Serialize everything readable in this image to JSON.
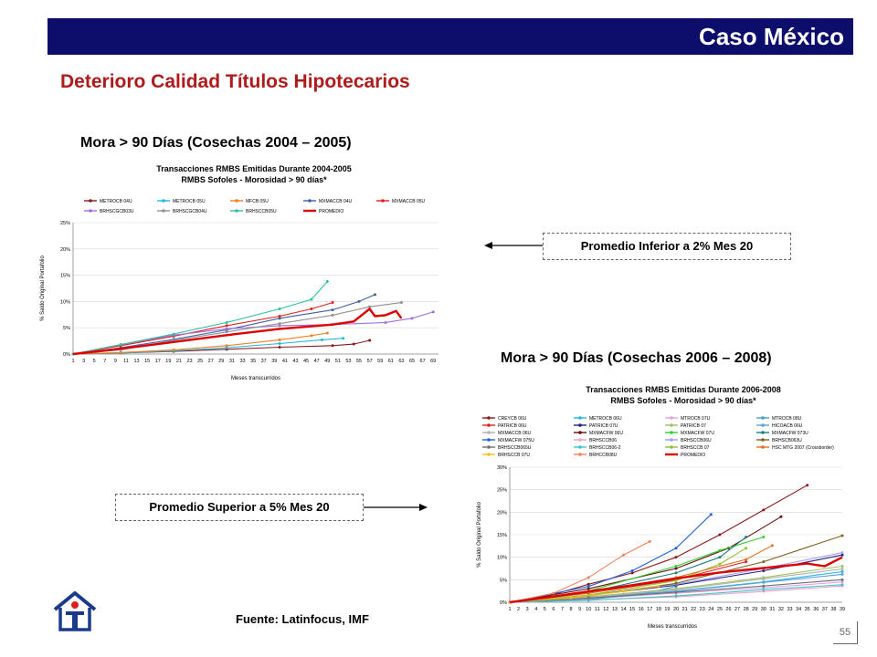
{
  "header": {
    "title": "Caso México"
  },
  "slide_title": "Deterioro Calidad Títulos Hipotecarios",
  "section1_heading": "Mora > 90 Días (Cosechas 2004 – 2005)",
  "section2_heading": "Mora > 90 Días (Cosechas 2006 – 2008)",
  "callout_inferior": "Promedio Inferior a 2% Mes 20",
  "callout_superior": "Promedio Superior a 5% Mes 20",
  "source": "Fuente: Latinfocus, IMF",
  "page_number": "55",
  "colors": {
    "header_bar": "#0d0d6b",
    "title_red": "#b01a1a",
    "promedio": "#dd0000"
  },
  "chart_data": [
    {
      "type": "line",
      "title": "Transacciones RMBS Emitidas Durante 2004-2005",
      "subtitle": "RMBS Sofoles - Morosidad > 90 días*",
      "xlabel": "Meses transcurridos",
      "ylabel": "% Saldo Original Portafolio",
      "x_ticks": [
        1,
        3,
        5,
        7,
        9,
        11,
        13,
        15,
        17,
        19,
        21,
        23,
        25,
        27,
        29,
        31,
        33,
        35,
        37,
        39,
        41,
        43,
        45,
        47,
        49,
        51,
        53,
        55,
        57,
        59,
        61,
        63,
        65,
        67,
        69
      ],
      "xlim": [
        1,
        70
      ],
      "ylim": [
        0,
        25
      ],
      "y_ticks": [
        "0%",
        "5%",
        "10%",
        "15%",
        "20%",
        "25%"
      ],
      "grid": true,
      "legend_position": "top",
      "series": [
        {
          "name": "METROCB 04U",
          "color": "#8b1a1a",
          "values": [
            [
              1,
              0
            ],
            [
              10,
              0.2
            ],
            [
              20,
              0.5
            ],
            [
              30,
              0.9
            ],
            [
              40,
              1.3
            ],
            [
              50,
              1.6
            ],
            [
              54,
              1.9
            ],
            [
              57,
              2.6
            ]
          ]
        },
        {
          "name": "METROCB 05U",
          "color": "#20b8e0",
          "values": [
            [
              1,
              0
            ],
            [
              10,
              0.2
            ],
            [
              20,
              0.6
            ],
            [
              30,
              1.2
            ],
            [
              40,
              2.0
            ],
            [
              48,
              2.7
            ],
            [
              52,
              3.0
            ]
          ]
        },
        {
          "name": "MFCB 05U",
          "color": "#f08020",
          "values": [
            [
              1,
              0
            ],
            [
              10,
              0.3
            ],
            [
              20,
              0.8
            ],
            [
              30,
              1.6
            ],
            [
              40,
              2.7
            ],
            [
              46,
              3.5
            ],
            [
              49,
              4.0
            ]
          ]
        },
        {
          "name": "MXMACCB 04U",
          "color": "#4060a0",
          "values": [
            [
              1,
              0
            ],
            [
              10,
              1.2
            ],
            [
              20,
              2.8
            ],
            [
              30,
              4.6
            ],
            [
              40,
              6.8
            ],
            [
              50,
              8.4
            ],
            [
              55,
              10.0
            ],
            [
              58,
              11.3
            ]
          ]
        },
        {
          "name": "MXMACCB 05U",
          "color": "#e02020",
          "values": [
            [
              1,
              0
            ],
            [
              10,
              1.6
            ],
            [
              20,
              3.4
            ],
            [
              30,
              5.4
            ],
            [
              40,
              7.2
            ],
            [
              46,
              8.6
            ],
            [
              50,
              9.8
            ]
          ]
        },
        {
          "name": "BRHSCGCB03U",
          "color": "#a070e0",
          "values": [
            [
              1,
              0
            ],
            [
              10,
              1.8
            ],
            [
              20,
              3.6
            ],
            [
              30,
              4.8
            ],
            [
              40,
              5.4
            ],
            [
              50,
              5.6
            ],
            [
              60,
              6.0
            ],
            [
              65,
              6.8
            ],
            [
              69,
              8.0
            ]
          ]
        },
        {
          "name": "BRHSCGCB04U",
          "color": "#909090",
          "values": [
            [
              1,
              0
            ],
            [
              10,
              0.8
            ],
            [
              20,
              2.6
            ],
            [
              30,
              4.2
            ],
            [
              40,
              5.8
            ],
            [
              50,
              7.4
            ],
            [
              57,
              9.0
            ],
            [
              63,
              9.8
            ]
          ]
        },
        {
          "name": "BRHSCCB05U",
          "color": "#30c0a0",
          "values": [
            [
              1,
              0
            ],
            [
              10,
              1.8
            ],
            [
              20,
              3.8
            ],
            [
              30,
              6.0
            ],
            [
              40,
              8.6
            ],
            [
              46,
              10.4
            ],
            [
              49,
              13.8
            ]
          ]
        },
        {
          "name": "PROMEDIO",
          "color": "#dd0000",
          "width": 2.4,
          "values": [
            [
              1,
              0
            ],
            [
              10,
              1.0
            ],
            [
              20,
              2.3
            ],
            [
              30,
              3.6
            ],
            [
              40,
              4.8
            ],
            [
              50,
              5.6
            ],
            [
              54,
              6.2
            ],
            [
              57,
              8.6
            ],
            [
              58,
              7.2
            ],
            [
              60,
              7.4
            ],
            [
              62,
              8.2
            ],
            [
              63,
              6.8
            ]
          ]
        }
      ]
    },
    {
      "type": "line",
      "title": "Transacciones RMBS Emitidas Durante 2006-2008",
      "subtitle": "RMBS Sofoles - Morosidad > 90 días*",
      "xlabel": "Meses transcurridos",
      "ylabel": "% Saldo Original Portafolio",
      "x_ticks": [
        1,
        2,
        3,
        4,
        5,
        6,
        7,
        8,
        9,
        10,
        11,
        12,
        13,
        14,
        15,
        16,
        17,
        18,
        19,
        20,
        21,
        22,
        23,
        24,
        25,
        26,
        27,
        28,
        29,
        30,
        31,
        32,
        33,
        34,
        35,
        36,
        37,
        38,
        39
      ],
      "xlim": [
        1,
        39
      ],
      "ylim": [
        0,
        30
      ],
      "y_ticks": [
        "0%",
        "5%",
        "10%",
        "15%",
        "20%",
        "25%",
        "30%"
      ],
      "grid": true,
      "legend_position": "top",
      "series": [
        {
          "name": "CREYCB 06U",
          "color": "#8b1a1a",
          "values": [
            [
              1,
              0
            ],
            [
              5,
              1.2
            ],
            [
              10,
              4.0
            ],
            [
              15,
              6.5
            ],
            [
              20,
              10.0
            ],
            [
              25,
              15.0
            ],
            [
              30,
              20.5
            ],
            [
              35,
              26.0
            ]
          ]
        },
        {
          "name": "METROCB 06U",
          "color": "#20b8e0",
          "values": [
            [
              1,
              0
            ],
            [
              10,
              1.0
            ],
            [
              20,
              2.5
            ],
            [
              30,
              4.5
            ],
            [
              39,
              6.8
            ]
          ]
        },
        {
          "name": "MTROCB 07U",
          "color": "#e0a0e0",
          "values": [
            [
              1,
              0
            ],
            [
              10,
              0.8
            ],
            [
              20,
              2.0
            ],
            [
              30,
              3.2
            ],
            [
              39,
              4.5
            ]
          ]
        },
        {
          "name": "MTROCB 08U",
          "color": "#40a0c0",
          "values": [
            [
              1,
              0
            ],
            [
              10,
              0.6
            ],
            [
              16,
              1.8
            ],
            [
              20,
              3.5
            ]
          ]
        },
        {
          "name": "PATRICB 06U",
          "color": "#e02020",
          "values": [
            [
              1,
              0
            ],
            [
              10,
              2.0
            ],
            [
              20,
              5.0
            ],
            [
              28,
              9.0
            ]
          ]
        },
        {
          "name": "PATRICB 07U",
          "color": "#202080",
          "values": [
            [
              1,
              0
            ],
            [
              10,
              1.5
            ],
            [
              20,
              3.8
            ],
            [
              30,
              7.0
            ],
            [
              39,
              10.5
            ]
          ]
        },
        {
          "name": "PATRICB 07",
          "color": "#a0c060",
          "values": [
            [
              1,
              0
            ],
            [
              10,
              1.2
            ],
            [
              20,
              3.0
            ],
            [
              30,
              5.5
            ],
            [
              39,
              8.0
            ]
          ]
        },
        {
          "name": "HICOACB 06U",
          "color": "#60a0e0",
          "values": [
            [
              1,
              0
            ],
            [
              10,
              0.9
            ],
            [
              20,
              2.4
            ],
            [
              30,
              4.4
            ],
            [
              39,
              6.2
            ]
          ]
        },
        {
          "name": "MXMACCB 06U",
          "color": "#b0b0b0",
          "values": [
            [
              1,
              0
            ],
            [
              10,
              1.1
            ],
            [
              20,
              2.8
            ],
            [
              30,
              5.2
            ],
            [
              39,
              7.4
            ]
          ]
        },
        {
          "name": "MXMACFW 06U",
          "color": "#6a0d0d",
          "values": [
            [
              1,
              0
            ],
            [
              10,
              3.0
            ],
            [
              20,
              7.5
            ],
            [
              26,
              12.0
            ],
            [
              32,
              19.0
            ]
          ]
        },
        {
          "name": "MXMACFW 07U",
          "color": "#30d030",
          "values": [
            [
              1,
              0
            ],
            [
              10,
              2.5
            ],
            [
              20,
              8.0
            ],
            [
              25,
              11.5
            ],
            [
              30,
              14.5
            ]
          ]
        },
        {
          "name": "MXMACFW 073U",
          "color": "#208080",
          "values": [
            [
              1,
              0
            ],
            [
              10,
              2.2
            ],
            [
              20,
              6.5
            ],
            [
              25,
              10.0
            ],
            [
              28,
              14.5
            ]
          ]
        },
        {
          "name": "MXMACFW 075U",
          "color": "#2060e0",
          "values": [
            [
              1,
              0
            ],
            [
              10,
              3.5
            ],
            [
              15,
              7.0
            ],
            [
              20,
              12.0
            ],
            [
              24,
              19.5
            ]
          ]
        },
        {
          "name": "BRHSCCB06",
          "color": "#f0a0c0",
          "values": [
            [
              1,
              0
            ],
            [
              10,
              0.5
            ],
            [
              20,
              1.2
            ],
            [
              30,
              2.4
            ],
            [
              39,
              3.6
            ]
          ]
        },
        {
          "name": "BRHSCCB06U",
          "color": "#a0a0f0",
          "values": [
            [
              1,
              0
            ],
            [
              10,
              1.5
            ],
            [
              20,
              4.0
            ],
            [
              30,
              7.5
            ],
            [
              39,
              11.0
            ]
          ]
        },
        {
          "name": "BRHSCB063U",
          "color": "#806020",
          "values": [
            [
              1,
              0
            ],
            [
              10,
              1.4
            ],
            [
              20,
              4.2
            ],
            [
              30,
              9.0
            ],
            [
              39,
              14.8
            ]
          ]
        },
        {
          "name": "BRHSCCB065U",
          "color": "#707070",
          "values": [
            [
              1,
              0
            ],
            [
              10,
              0.9
            ],
            [
              20,
              2.2
            ],
            [
              30,
              3.6
            ],
            [
              39,
              5.0
            ]
          ]
        },
        {
          "name": "BRHSCCB06-2",
          "color": "#40c0d0",
          "values": [
            [
              1,
              0
            ],
            [
              10,
              0.4
            ],
            [
              20,
              1.4
            ],
            [
              30,
              2.8
            ],
            [
              39,
              3.9
            ]
          ]
        },
        {
          "name": "BRHSCCB 07",
          "color": "#90c030",
          "values": [
            [
              1,
              0
            ],
            [
              10,
              1.6
            ],
            [
              20,
              4.8
            ],
            [
              25,
              8.5
            ],
            [
              28,
              12.0
            ]
          ]
        },
        {
          "name": "HSC MTG 2007 (Crossborder)",
          "color": "#e07020",
          "values": [
            [
              1,
              0
            ],
            [
              10,
              2.0
            ],
            [
              20,
              5.5
            ],
            [
              28,
              9.5
            ],
            [
              31,
              12.6
            ]
          ]
        },
        {
          "name": "BRHSCCB 07U",
          "color": "#f0c020",
          "values": [
            [
              1,
              0
            ],
            [
              8,
              1.0
            ],
            [
              14,
              2.4
            ],
            [
              18,
              3.6
            ]
          ]
        },
        {
          "name": "BRHCCB08U",
          "color": "#f08060",
          "values": [
            [
              1,
              0
            ],
            [
              6,
              2.0
            ],
            [
              10,
              5.5
            ],
            [
              14,
              10.5
            ],
            [
              17,
              13.5
            ]
          ]
        },
        {
          "name": "PROMEDIO",
          "color": "#dd0000",
          "width": 2.4,
          "values": [
            [
              1,
              0
            ],
            [
              5,
              1.0
            ],
            [
              10,
              2.4
            ],
            [
              15,
              3.8
            ],
            [
              20,
              5.3
            ],
            [
              25,
              6.6
            ],
            [
              30,
              7.6
            ],
            [
              35,
              8.6
            ],
            [
              37,
              8.0
            ],
            [
              39,
              10.0
            ]
          ]
        }
      ]
    }
  ]
}
